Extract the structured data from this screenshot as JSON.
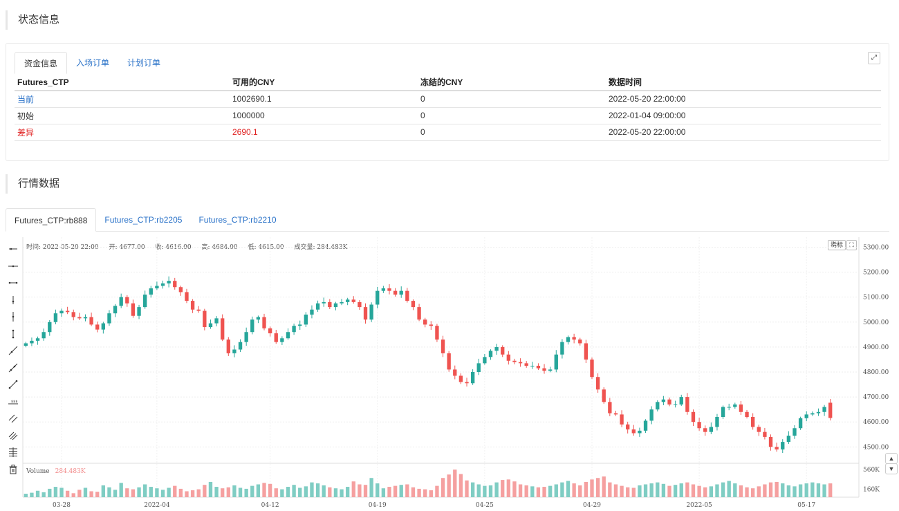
{
  "status_section": {
    "title": "状态信息"
  },
  "fund_panel": {
    "tabs": [
      {
        "label": "资金信息"
      },
      {
        "label": "入场订单"
      },
      {
        "label": "计划订单"
      }
    ],
    "expand_icon": "expand-icon",
    "headers": [
      "Futures_CTP",
      "可用的CNY",
      "冻结的CNY",
      "数据时间"
    ],
    "rows": [
      {
        "name": "当前",
        "available": "1002690.1",
        "frozen": "0",
        "time": "2022-05-20 22:00:00",
        "color": "#2a72c8"
      },
      {
        "name": "初始",
        "available": "1000000",
        "frozen": "0",
        "time": "2022-01-04 09:00:00",
        "color": "#333333"
      },
      {
        "name": "差异",
        "available": "2690.1",
        "frozen": "0",
        "time": "2022-05-20 22:00:00",
        "color": "#e02020"
      }
    ]
  },
  "market_section": {
    "title": "行情数据"
  },
  "market_tabs": [
    {
      "label": "Futures_CTP:rb888"
    },
    {
      "label": "Futures_CTP:rb2205"
    },
    {
      "label": "Futures_CTP:rb2210"
    }
  ],
  "chart_info": {
    "time": "时间: 2022-05-20 22:00",
    "open": "开: 4677.00",
    "close": "收: 4616.00",
    "high": "高: 4684.00",
    "low": "低: 4615.00",
    "volume": "成交量: 284.483K"
  },
  "indicator_button": "指标",
  "volume_label": {
    "name": "Volume",
    "value": "284.483K"
  },
  "toolbar_icons": [
    "horizontal-ray-icon",
    "horizontal-line-icon",
    "horizontal-segment-icon",
    "vertical-ray-icon",
    "vertical-segment-icon",
    "vertical-line-icon",
    "ray-icon",
    "trend-line-icon",
    "segment-icon",
    "price-line-icon",
    "parallel-channel-icon",
    "price-channel-icon",
    "fibonacci-icon",
    "trash-icon"
  ],
  "colors": {
    "up": "#26a69a",
    "down": "#ef5350",
    "up_vol": "#7fcdc3",
    "down_vol": "#f5a0a0"
  },
  "chart_data": {
    "type": "candlestick",
    "title": "",
    "y_ticks": [
      "5300.00",
      "5200.00",
      "5100.00",
      "5000.00",
      "4900.00",
      "4800.00",
      "4700.00",
      "4600.00",
      "4500.00"
    ],
    "ylim": [
      4440,
      5340
    ],
    "volume_ticks": [
      "560K",
      "160K"
    ],
    "volume_lim": [
      0,
      660
    ],
    "x_ticks": [
      {
        "label": "03-28",
        "index": 6
      },
      {
        "label": "2022-04",
        "index": 22
      },
      {
        "label": "04-12",
        "index": 41
      },
      {
        "label": "04-19",
        "index": 59
      },
      {
        "label": "04-25",
        "index": 77
      },
      {
        "label": "04-29",
        "index": 95
      },
      {
        "label": "2022-05",
        "index": 113
      },
      {
        "label": "05-17",
        "index": 131
      }
    ],
    "closes": [
      4915,
      4925,
      4935,
      4960,
      5000,
      5035,
      5045,
      5040,
      5020,
      5015,
      5020,
      4990,
      4970,
      4995,
      5035,
      5065,
      5100,
      5075,
      5025,
      5060,
      5110,
      5135,
      5145,
      5155,
      5165,
      5140,
      5120,
      5085,
      5050,
      5045,
      4980,
      4995,
      5015,
      4930,
      4875,
      4890,
      4920,
      4960,
      5010,
      5020,
      4975,
      4955,
      4920,
      4935,
      4960,
      4985,
      4990,
      5030,
      5050,
      5075,
      5080,
      5060,
      5075,
      5080,
      5090,
      5080,
      5060,
      5010,
      5070,
      5125,
      5135,
      5125,
      5110,
      5125,
      5085,
      5060,
      5010,
      4990,
      4985,
      4930,
      4875,
      4810,
      4785,
      4760,
      4755,
      4800,
      4835,
      4860,
      4885,
      4900,
      4870,
      4845,
      4840,
      4835,
      4825,
      4825,
      4815,
      4805,
      4810,
      4870,
      4920,
      4940,
      4930,
      4915,
      4850,
      4780,
      4730,
      4680,
      4635,
      4630,
      4590,
      4570,
      4555,
      4565,
      4605,
      4650,
      4680,
      4690,
      4670,
      4670,
      4700,
      4640,
      4600,
      4575,
      4560,
      4580,
      4620,
      4660,
      4660,
      4670,
      4640,
      4620,
      4580,
      4560,
      4540,
      4500,
      4490,
      4520,
      4545,
      4575,
      4615,
      4630,
      4635,
      4640,
      4660,
      4616
    ],
    "volumes_k": [
      70,
      90,
      130,
      100,
      170,
      210,
      190,
      130,
      80,
      150,
      190,
      120,
      110,
      240,
      200,
      150,
      290,
      180,
      160,
      200,
      260,
      210,
      180,
      150,
      190,
      230,
      170,
      120,
      140,
      160,
      250,
      310,
      210,
      180,
      200,
      240,
      190,
      170,
      230,
      260,
      290,
      270,
      180,
      160,
      210,
      250,
      190,
      220,
      300,
      280,
      240,
      200,
      180,
      160,
      210,
      320,
      260,
      250,
      390,
      280,
      180,
      210,
      230,
      250,
      260,
      200,
      170,
      160,
      140,
      230,
      390,
      460,
      560,
      470,
      340,
      300,
      260,
      230,
      240,
      300,
      350,
      360,
      320,
      260,
      240,
      220,
      200,
      210,
      230,
      260,
      300,
      330,
      280,
      240,
      310,
      360,
      390,
      420,
      300,
      260,
      230,
      200,
      190,
      240,
      260,
      280,
      300,
      270,
      230,
      250,
      280,
      300,
      260,
      230,
      200,
      220,
      260,
      300,
      330,
      280,
      240,
      200,
      180,
      220,
      260,
      300,
      310,
      280,
      240,
      220,
      260,
      280,
      300,
      280,
      260,
      280
    ]
  }
}
